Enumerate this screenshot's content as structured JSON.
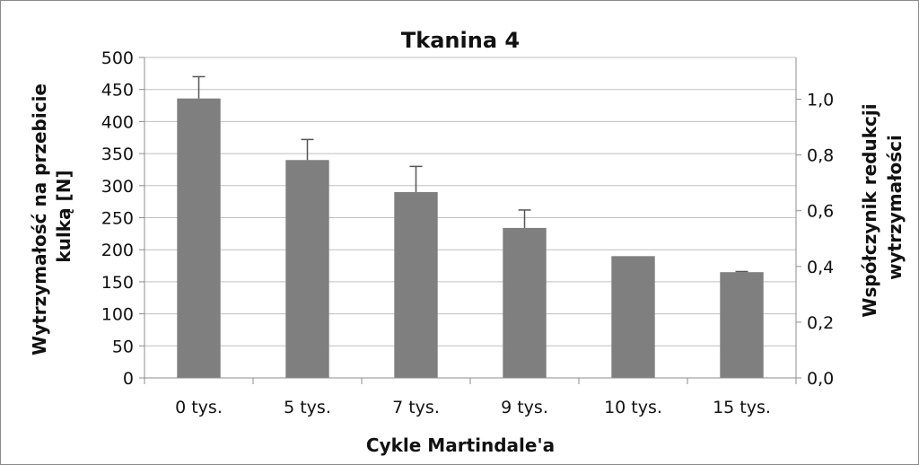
{
  "chart_data": {
    "type": "bar",
    "title": "Tkanina 4",
    "xlabel": "Cykle Martindale'a",
    "ylabel_lines": [
      "Wytrzymałość na przebicie",
      "kulką [N]"
    ],
    "y2label_lines": [
      "Współczynik redukcji",
      "wytrzymałości"
    ],
    "categories": [
      "0 tys.",
      "5 tys.",
      "7 tys.",
      "9 tys.",
      "10 tys.",
      "15 tys."
    ],
    "series": [
      {
        "values": [
          436,
          340,
          290,
          234,
          190,
          165
        ],
        "error_plus": [
          34,
          32,
          40,
          28,
          0,
          1
        ]
      }
    ],
    "ylim": [
      0,
      500
    ],
    "y_ticks": [
      0,
      50,
      100,
      150,
      200,
      250,
      300,
      350,
      400,
      450,
      500
    ],
    "y2lim": [
      0,
      1.15
    ],
    "y2_ticks": [
      0,
      0.2,
      0.4,
      0.6,
      0.8,
      1.0
    ],
    "y2_tick_labels": [
      "0,0",
      "0,2",
      "0,4",
      "0,6",
      "0,8",
      "1,0"
    ],
    "grid": true,
    "bar_color": "#7f7f7f",
    "grid_color": "#bfbfbf",
    "axis_color": "#8c8c8c"
  }
}
